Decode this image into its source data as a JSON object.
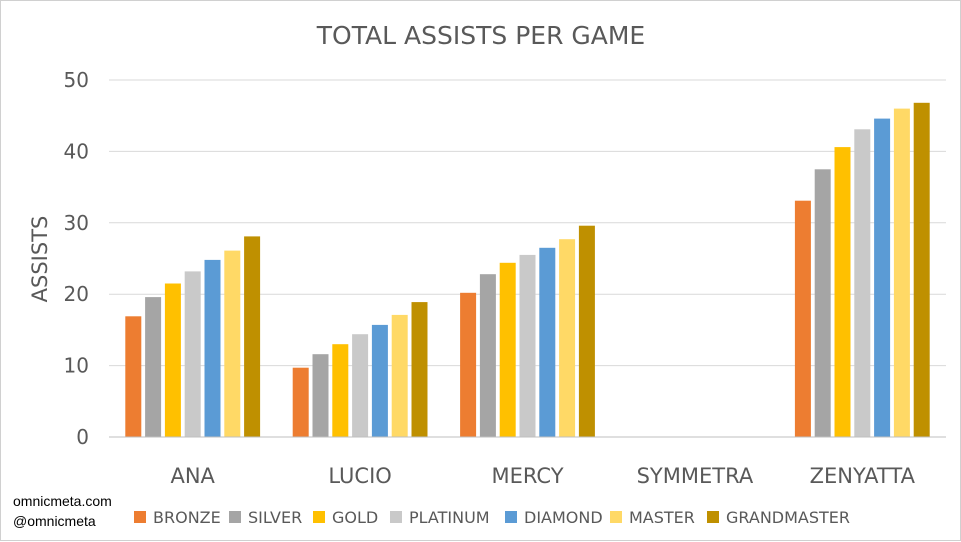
{
  "chart_data": {
    "type": "bar",
    "title": "TOTAL ASSISTS PER GAME",
    "xlabel": "",
    "ylabel": "ASSISTS",
    "ylim": [
      0,
      50
    ],
    "yticks": [
      0,
      10,
      20,
      30,
      40,
      50
    ],
    "grid": true,
    "legend_position": "bottom",
    "categories": [
      "ANA",
      "LUCIO",
      "MERCY",
      "SYMMETRA",
      "ZENYATTA"
    ],
    "series": [
      {
        "name": "BRONZE",
        "color": "#ED7D31",
        "values": [
          16.9,
          9.7,
          20.2,
          0,
          33.1
        ]
      },
      {
        "name": "SILVER",
        "color": "#A5A5A5",
        "values": [
          19.6,
          11.6,
          22.8,
          0,
          37.5
        ]
      },
      {
        "name": "GOLD",
        "color": "#FFC000",
        "values": [
          21.5,
          13.0,
          24.4,
          0,
          40.6
        ]
      },
      {
        "name": "PLATINUM",
        "color": "#C9C9C9",
        "values": [
          23.2,
          14.4,
          25.5,
          0,
          43.1
        ]
      },
      {
        "name": "DIAMOND",
        "color": "#5B9BD5",
        "values": [
          24.8,
          15.7,
          26.5,
          0,
          44.6
        ]
      },
      {
        "name": "MASTER",
        "color": "#FFD966",
        "values": [
          26.1,
          17.1,
          27.7,
          0,
          46.0
        ]
      },
      {
        "name": "GRANDMASTER",
        "color": "#BF9000",
        "values": [
          28.1,
          18.9,
          29.6,
          0,
          46.8
        ]
      }
    ]
  },
  "credit": {
    "site": "omnicmeta.com",
    "handle": "@omnicmeta"
  }
}
